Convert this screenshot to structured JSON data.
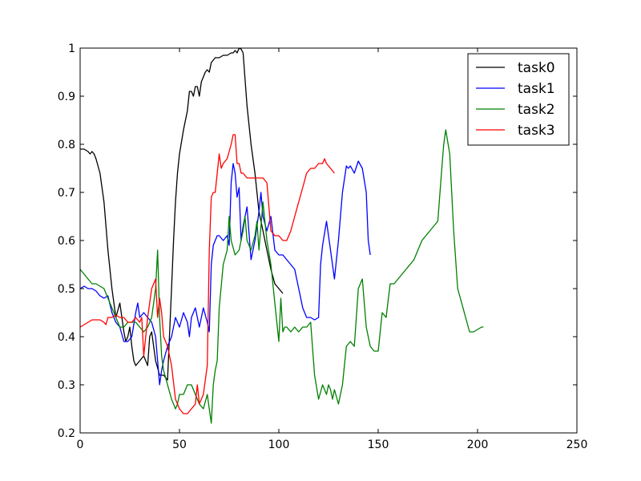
{
  "chart_data": {
    "type": "line",
    "title": "",
    "xlabel": "",
    "ylabel": "",
    "xlim": [
      0,
      250
    ],
    "ylim": [
      0.2,
      1.0
    ],
    "xticks": [
      0,
      50,
      100,
      150,
      200,
      250
    ],
    "yticks": [
      0.2,
      0.3,
      0.4,
      0.5,
      0.6,
      0.7,
      0.8,
      0.9,
      1.0
    ],
    "grid": false,
    "legend_position": "top-right",
    "series": [
      {
        "name": "task0",
        "color": "#000000",
        "x": [
          0,
          2,
          4,
          5,
          6,
          7,
          8,
          10,
          12,
          14,
          16,
          18,
          20,
          21,
          22,
          23,
          24,
          25,
          26,
          27,
          28,
          29,
          30,
          32,
          34,
          35,
          36,
          38,
          40,
          42,
          44,
          46,
          47,
          48,
          49,
          50,
          52,
          54,
          55,
          56,
          57,
          58,
          59,
          60,
          61,
          62,
          63,
          64,
          65,
          66,
          67,
          68,
          70,
          72,
          74,
          76,
          77,
          78,
          79,
          80,
          81,
          82,
          84,
          86,
          88,
          90,
          92,
          94,
          96,
          98,
          100,
          102
        ],
        "y": [
          0.79,
          0.79,
          0.785,
          0.78,
          0.785,
          0.78,
          0.77,
          0.74,
          0.68,
          0.58,
          0.5,
          0.44,
          0.47,
          0.44,
          0.41,
          0.39,
          0.4,
          0.42,
          0.38,
          0.35,
          0.34,
          0.345,
          0.35,
          0.36,
          0.34,
          0.4,
          0.41,
          0.35,
          0.32,
          0.32,
          0.31,
          0.5,
          0.6,
          0.68,
          0.74,
          0.78,
          0.83,
          0.87,
          0.91,
          0.91,
          0.9,
          0.92,
          0.92,
          0.9,
          0.93,
          0.94,
          0.95,
          0.955,
          0.95,
          0.97,
          0.975,
          0.98,
          0.98,
          0.985,
          0.985,
          0.99,
          0.99,
          0.995,
          0.99,
          1.0,
          0.998,
          0.99,
          0.88,
          0.8,
          0.74,
          0.66,
          0.62,
          0.58,
          0.54,
          0.51,
          0.5,
          0.49
        ]
      },
      {
        "name": "task1",
        "color": "#0000ff",
        "x": [
          0,
          2,
          4,
          6,
          8,
          10,
          12,
          14,
          16,
          18,
          20,
          22,
          24,
          26,
          28,
          29,
          30,
          32,
          34,
          36,
          38,
          40,
          41,
          42,
          44,
          46,
          48,
          49,
          50,
          52,
          54,
          55,
          56,
          58,
          59,
          60,
          62,
          64,
          65,
          66,
          67,
          68,
          69,
          70,
          72,
          74,
          75,
          76,
          77,
          78,
          79,
          80,
          81,
          82,
          84,
          86,
          88,
          90,
          91,
          92,
          94,
          96,
          98,
          100,
          102,
          104,
          106,
          108,
          110,
          112,
          114,
          116,
          118,
          120,
          121,
          122,
          124,
          126,
          128,
          130,
          132,
          134,
          135,
          136,
          138,
          140,
          142,
          144,
          145,
          146
        ],
        "y": [
          0.5,
          0.505,
          0.5,
          0.5,
          0.495,
          0.485,
          0.48,
          0.485,
          0.45,
          0.43,
          0.42,
          0.39,
          0.39,
          0.4,
          0.45,
          0.47,
          0.44,
          0.45,
          0.44,
          0.43,
          0.4,
          0.3,
          0.33,
          0.35,
          0.38,
          0.4,
          0.44,
          0.43,
          0.42,
          0.45,
          0.43,
          0.4,
          0.44,
          0.46,
          0.44,
          0.42,
          0.46,
          0.43,
          0.41,
          0.55,
          0.59,
          0.6,
          0.61,
          0.61,
          0.6,
          0.61,
          0.59,
          0.72,
          0.76,
          0.74,
          0.69,
          0.71,
          0.6,
          0.63,
          0.67,
          0.56,
          0.6,
          0.66,
          0.7,
          0.65,
          0.62,
          0.65,
          0.58,
          0.57,
          0.57,
          0.56,
          0.55,
          0.54,
          0.5,
          0.46,
          0.44,
          0.44,
          0.435,
          0.44,
          0.55,
          0.59,
          0.64,
          0.58,
          0.52,
          0.6,
          0.7,
          0.755,
          0.75,
          0.755,
          0.74,
          0.765,
          0.75,
          0.7,
          0.6,
          0.57
        ]
      },
      {
        "name": "task2",
        "color": "#008000",
        "x": [
          0,
          2,
          4,
          6,
          8,
          10,
          12,
          14,
          16,
          18,
          20,
          22,
          24,
          26,
          28,
          30,
          32,
          34,
          36,
          38,
          39,
          40,
          41,
          42,
          44,
          46,
          47,
          48,
          49,
          50,
          52,
          54,
          56,
          58,
          60,
          62,
          64,
          65,
          66,
          67,
          68,
          69,
          70,
          72,
          74,
          75,
          76,
          78,
          80,
          82,
          83,
          84,
          86,
          88,
          89,
          90,
          92,
          94,
          96,
          98,
          100,
          101,
          102,
          103,
          104,
          106,
          108,
          110,
          112,
          114,
          116,
          118,
          120,
          122,
          124,
          125,
          126,
          127,
          128,
          130,
          132,
          134,
          136,
          138,
          140,
          142,
          144,
          146,
          148,
          150,
          152,
          154,
          156,
          158,
          160,
          162,
          164,
          166,
          168,
          170,
          172,
          174,
          176,
          178,
          180,
          182,
          183,
          184,
          186,
          188,
          190,
          192,
          194,
          196,
          198,
          200,
          202,
          203
        ],
        "y": [
          0.54,
          0.53,
          0.52,
          0.51,
          0.51,
          0.505,
          0.5,
          0.48,
          0.46,
          0.44,
          0.42,
          0.42,
          0.43,
          0.43,
          0.43,
          0.42,
          0.41,
          0.42,
          0.44,
          0.5,
          0.58,
          0.44,
          0.36,
          0.33,
          0.3,
          0.27,
          0.26,
          0.25,
          0.26,
          0.28,
          0.28,
          0.3,
          0.3,
          0.28,
          0.26,
          0.25,
          0.28,
          0.25,
          0.22,
          0.3,
          0.33,
          0.35,
          0.46,
          0.55,
          0.58,
          0.65,
          0.6,
          0.57,
          0.58,
          0.62,
          0.65,
          0.6,
          0.58,
          0.61,
          0.64,
          0.58,
          0.68,
          0.6,
          0.55,
          0.47,
          0.39,
          0.48,
          0.41,
          0.42,
          0.42,
          0.41,
          0.42,
          0.41,
          0.42,
          0.42,
          0.43,
          0.32,
          0.27,
          0.3,
          0.28,
          0.3,
          0.29,
          0.27,
          0.29,
          0.26,
          0.3,
          0.38,
          0.39,
          0.38,
          0.5,
          0.52,
          0.42,
          0.38,
          0.37,
          0.37,
          0.45,
          0.44,
          0.51,
          0.51,
          0.52,
          0.53,
          0.54,
          0.55,
          0.56,
          0.58,
          0.6,
          0.61,
          0.62,
          0.63,
          0.64,
          0.75,
          0.8,
          0.83,
          0.78,
          0.62,
          0.5,
          0.47,
          0.44,
          0.41,
          0.41,
          0.415,
          0.42,
          0.42
        ]
      },
      {
        "name": "task3",
        "color": "#ff0000",
        "x": [
          0,
          2,
          4,
          6,
          8,
          10,
          12,
          13,
          14,
          16,
          18,
          20,
          22,
          24,
          26,
          28,
          30,
          31,
          32,
          34,
          36,
          38,
          39,
          40,
          41,
          42,
          44,
          46,
          48,
          50,
          52,
          54,
          56,
          58,
          59,
          60,
          62,
          64,
          65,
          66,
          67,
          68,
          70,
          71,
          72,
          74,
          76,
          77,
          78,
          79,
          80,
          81,
          82,
          84,
          86,
          88,
          90,
          92,
          94,
          96,
          98,
          100,
          102,
          104,
          106,
          108,
          110,
          112,
          114,
          116,
          118,
          120,
          122,
          123,
          124,
          126,
          128
        ],
        "y": [
          0.42,
          0.425,
          0.43,
          0.435,
          0.435,
          0.435,
          0.43,
          0.425,
          0.44,
          0.44,
          0.445,
          0.44,
          0.44,
          0.43,
          0.43,
          0.44,
          0.43,
          0.44,
          0.36,
          0.44,
          0.5,
          0.52,
          0.44,
          0.48,
          0.45,
          0.4,
          0.38,
          0.34,
          0.27,
          0.25,
          0.24,
          0.24,
          0.25,
          0.26,
          0.3,
          0.26,
          0.28,
          0.34,
          0.58,
          0.69,
          0.7,
          0.7,
          0.78,
          0.75,
          0.76,
          0.77,
          0.8,
          0.82,
          0.82,
          0.76,
          0.76,
          0.74,
          0.74,
          0.73,
          0.73,
          0.73,
          0.73,
          0.73,
          0.72,
          0.62,
          0.61,
          0.61,
          0.6,
          0.6,
          0.62,
          0.65,
          0.68,
          0.71,
          0.74,
          0.75,
          0.75,
          0.76,
          0.76,
          0.77,
          0.76,
          0.75,
          0.74
        ]
      }
    ]
  }
}
